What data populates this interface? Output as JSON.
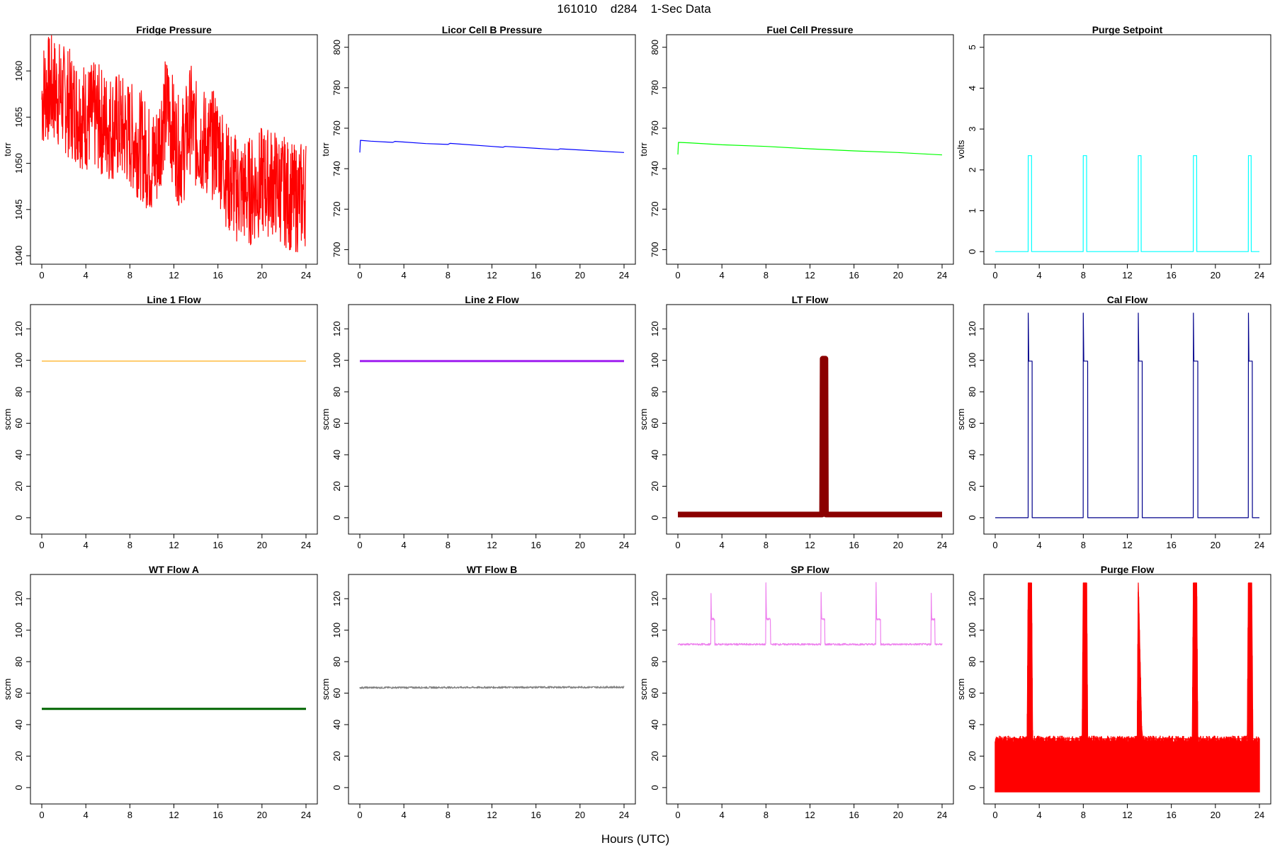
{
  "figure": {
    "title": "161010    d284    1-Sec Data",
    "xlabel": "Hours (UTC)"
  },
  "chart_data": [
    {
      "type": "line",
      "title": "Fridge Pressure",
      "ylabel": "torr",
      "color": "#ff0000",
      "xlim": [
        0,
        24
      ],
      "ylim": [
        1040,
        1063
      ],
      "yticks": [
        1040,
        1045,
        1050,
        1055,
        1060
      ],
      "xticks": [
        0,
        4,
        8,
        12,
        16,
        20,
        24
      ],
      "noise": 6,
      "series": [
        {
          "x": [
            0,
            0.3,
            1,
            2,
            3,
            4,
            5,
            6,
            7,
            8,
            9,
            10,
            10.5,
            11,
            11.5,
            12,
            12.5,
            13,
            13.5,
            14,
            15,
            16,
            17,
            18,
            19,
            20,
            21,
            22,
            23,
            24
          ],
          "y": [
            1057,
            1058,
            1058,
            1057,
            1056,
            1055,
            1055,
            1054,
            1054,
            1053,
            1052,
            1050,
            1051,
            1055,
            1056,
            1053,
            1051,
            1052,
            1055,
            1053,
            1052,
            1052,
            1048,
            1047,
            1047,
            1048,
            1048,
            1047,
            1046,
            1047
          ]
        }
      ]
    },
    {
      "type": "line",
      "title": "Licor Cell B Pressure",
      "ylabel": "torr",
      "color": "#0000ff",
      "xlim": [
        0,
        24
      ],
      "ylim": [
        697,
        802
      ],
      "yticks": [
        700,
        720,
        740,
        760,
        780,
        800
      ],
      "xticks": [
        0,
        4,
        8,
        12,
        16,
        20,
        24
      ],
      "noise": 0,
      "series": [
        {
          "x": [
            0,
            0.05,
            1,
            3,
            3.2,
            6,
            8,
            8.2,
            12,
            13,
            13.2,
            18,
            18.2,
            24
          ],
          "y": [
            748,
            754,
            753.6,
            753,
            753.5,
            752.4,
            752,
            752.5,
            751,
            750.6,
            751,
            749.4,
            749.8,
            748
          ]
        }
      ]
    },
    {
      "type": "line",
      "title": "Fuel Cell Pressure",
      "ylabel": "torr",
      "color": "#00ff00",
      "xlim": [
        0,
        24
      ],
      "ylim": [
        697,
        802
      ],
      "yticks": [
        700,
        720,
        740,
        760,
        780,
        800
      ],
      "xticks": [
        0,
        4,
        8,
        12,
        16,
        20,
        24
      ],
      "noise": 0,
      "series": [
        {
          "x": [
            0,
            0.05,
            1,
            4,
            8,
            12,
            16,
            20,
            24
          ],
          "y": [
            747,
            753,
            752.8,
            751.8,
            751,
            749.8,
            748.8,
            748,
            746.8
          ]
        }
      ]
    },
    {
      "type": "line",
      "title": "Purge Setpoint",
      "ylabel": "volts",
      "color": "#00ffff",
      "xlim": [
        0,
        24
      ],
      "ylim": [
        -0.1,
        5.1
      ],
      "yticks": [
        0,
        1,
        2,
        3,
        4,
        5
      ],
      "xticks": [
        0,
        4,
        8,
        12,
        16,
        20,
        24
      ],
      "noise": 0,
      "series": [
        {
          "x": [
            0,
            2.99,
            3,
            3.3,
            3.31,
            7.99,
            8,
            8.3,
            8.31,
            12.99,
            13,
            13.25,
            13.26,
            17.99,
            18,
            18.3,
            18.31,
            22.99,
            23,
            23.25,
            23.26,
            24
          ],
          "y": [
            0,
            0,
            2.35,
            2.35,
            0,
            0,
            2.35,
            2.35,
            0,
            0,
            2.35,
            2.35,
            0,
            0,
            2.35,
            2.35,
            0,
            0,
            2.35,
            2.35,
            0,
            0
          ]
        }
      ]
    },
    {
      "type": "line",
      "title": "Line 1 Flow",
      "ylabel": "sccm",
      "color": "#ffa500",
      "xlim": [
        0,
        24
      ],
      "ylim": [
        -5,
        130
      ],
      "yticks": [
        0,
        20,
        40,
        60,
        80,
        100,
        120
      ],
      "xticks": [
        0,
        4,
        8,
        12,
        16,
        20,
        24
      ],
      "noise": 0,
      "series": [
        {
          "x": [
            0,
            24
          ],
          "y": [
            99.5,
            99.5
          ]
        }
      ]
    },
    {
      "type": "line",
      "title": "Line 2 Flow",
      "ylabel": "sccm",
      "color": "#a020f0",
      "xlim": [
        0,
        24
      ],
      "ylim": [
        -5,
        130
      ],
      "yticks": [
        0,
        20,
        40,
        60,
        80,
        100,
        120
      ],
      "xticks": [
        0,
        4,
        8,
        12,
        16,
        20,
        24
      ],
      "noise": 0,
      "series": [
        {
          "x": [
            0,
            24
          ],
          "y": [
            99.5,
            99.5
          ]
        }
      ]
    },
    {
      "type": "line",
      "title": "LT Flow",
      "ylabel": "sccm",
      "color": "#8b0000",
      "xlim": [
        0,
        24
      ],
      "ylim": [
        -5,
        130
      ],
      "yticks": [
        0,
        20,
        40,
        60,
        80,
        100,
        120
      ],
      "xticks": [
        0,
        4,
        8,
        12,
        16,
        20,
        24
      ],
      "noise": 0,
      "series": [
        {
          "x": [
            0,
            13.1,
            13.15,
            13.4,
            13.45,
            24
          ],
          "y": [
            2,
            2,
            101,
            101,
            2,
            2
          ]
        }
      ]
    },
    {
      "type": "line",
      "title": "Cal Flow",
      "ylabel": "sccm",
      "color": "#00008b",
      "xlim": [
        0,
        24
      ],
      "ylim": [
        -5,
        130
      ],
      "yticks": [
        0,
        20,
        40,
        60,
        80,
        100,
        120
      ],
      "xticks": [
        0,
        4,
        8,
        12,
        16,
        20,
        24
      ],
      "noise": 0,
      "series": [
        {
          "x": [
            0,
            2.99,
            3,
            3.05,
            3.35,
            3.36,
            7.99,
            8,
            8.05,
            8.4,
            8.41,
            12.99,
            13,
            13.05,
            13.35,
            13.36,
            17.99,
            18,
            18.05,
            18.4,
            18.41,
            22.99,
            23,
            23.05,
            23.35,
            23.36,
            24
          ],
          "y": [
            0,
            0,
            130,
            99.5,
            99.5,
            0,
            0,
            130,
            99.5,
            99.5,
            0,
            0,
            130,
            99.5,
            99.5,
            0,
            0,
            130,
            99.5,
            99.5,
            0,
            0,
            130,
            99.5,
            99.5,
            0,
            0
          ]
        }
      ]
    },
    {
      "type": "line",
      "title": "WT Flow A",
      "ylabel": "sccm",
      "color": "#006400",
      "xlim": [
        0,
        24
      ],
      "ylim": [
        -5,
        130
      ],
      "yticks": [
        0,
        20,
        40,
        60,
        80,
        100,
        120
      ],
      "xticks": [
        0,
        4,
        8,
        12,
        16,
        20,
        24
      ],
      "noise": 0,
      "series": [
        {
          "x": [
            0,
            24
          ],
          "y": [
            50,
            50
          ]
        }
      ]
    },
    {
      "type": "line",
      "title": "WT Flow B",
      "ylabel": "sccm",
      "color": "#808080",
      "xlim": [
        0,
        24
      ],
      "ylim": [
        -5,
        130
      ],
      "yticks": [
        0,
        20,
        40,
        60,
        80,
        100,
        120
      ],
      "xticks": [
        0,
        4,
        8,
        12,
        16,
        20,
        24
      ],
      "noise": 0.6,
      "series": [
        {
          "x": [
            0,
            24
          ],
          "y": [
            63.5,
            63.8
          ]
        }
      ]
    },
    {
      "type": "line",
      "title": "SP Flow",
      "ylabel": "sccm",
      "color": "#ee82ee",
      "xlim": [
        0,
        24
      ],
      "ylim": [
        -5,
        130
      ],
      "yticks": [
        0,
        20,
        40,
        60,
        80,
        100,
        120
      ],
      "xticks": [
        0,
        4,
        8,
        12,
        16,
        20,
        24
      ],
      "noise": 0.6,
      "series": [
        {
          "x": [
            0,
            2.99,
            3,
            3.05,
            3.35,
            3.36,
            7.99,
            8,
            8.05,
            8.4,
            8.41,
            12.99,
            13,
            13.05,
            13.35,
            13.36,
            17.99,
            18,
            18.05,
            18.4,
            18.41,
            22.99,
            23,
            23.05,
            23.35,
            23.36,
            24
          ],
          "y": [
            91,
            91,
            130,
            107,
            107,
            91,
            91,
            130,
            107,
            107,
            91,
            91,
            130,
            107,
            107,
            91,
            91,
            130,
            107,
            107,
            91,
            91,
            130,
            107,
            107,
            91,
            91
          ]
        }
      ]
    },
    {
      "type": "line",
      "title": "Purge Flow",
      "ylabel": "sccm",
      "color": "#ff0000",
      "xlim": [
        0,
        24
      ],
      "ylim": [
        -5,
        130
      ],
      "yticks": [
        0,
        20,
        40,
        60,
        80,
        100,
        120
      ],
      "xticks": [
        0,
        4,
        8,
        12,
        16,
        20,
        24
      ],
      "noise": 0,
      "series": [
        {
          "x": [
            0,
            2.9,
            3,
            3.3,
            3.4,
            7.9,
            8,
            8.3,
            8.4,
            12.9,
            13,
            13.3,
            13.4,
            17.9,
            18,
            18.3,
            18.4,
            22.9,
            23,
            23.3,
            23.4,
            24
          ],
          "y": [
            31,
            31,
            130,
            130,
            31,
            31,
            130,
            130,
            31,
            31,
            130,
            38,
            31,
            31,
            130,
            130,
            31,
            31,
            130,
            130,
            31,
            31
          ]
        }
      ]
    }
  ]
}
